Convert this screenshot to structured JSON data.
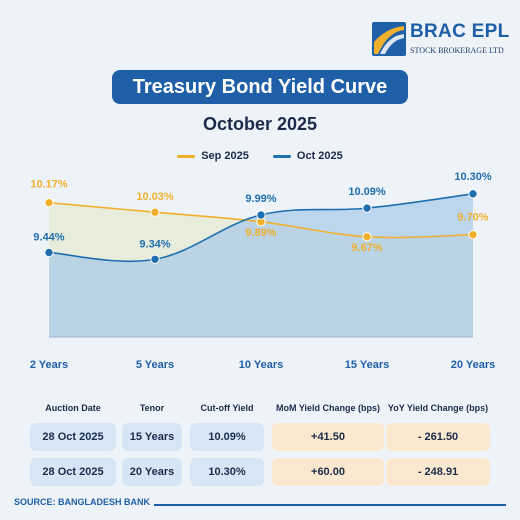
{
  "logo": {
    "name": "BRAC EPL",
    "sub": "STOCK BROKERAGE LTD"
  },
  "header": {
    "title": "Treasury Bond Yield Curve",
    "subtitle": "October 2025"
  },
  "colors": {
    "sep": "#f0b02e",
    "oct": "#1f6fae",
    "title_bg": "#1f5fa7",
    "cream": "#fbe9cf",
    "light_blue": "#d6e6f6"
  },
  "chart_data": {
    "type": "line",
    "categories": [
      "2 Years",
      "5 Years",
      "10 Years",
      "15 Years",
      "20 Years"
    ],
    "series": [
      {
        "name": "Sep 2025",
        "values": [
          10.17,
          10.03,
          9.89,
          9.67,
          9.7
        ],
        "labels": [
          "10.17%",
          "10.03%",
          "9.89%",
          "9.67%",
          "9.70%"
        ]
      },
      {
        "name": "Oct 2025",
        "values": [
          9.44,
          9.34,
          9.99,
          10.09,
          10.3
        ],
        "labels": [
          "9.44%",
          "9.34%",
          "9.99%",
          "10.09%",
          "10.30%"
        ]
      }
    ],
    "ylim": [
      8.2,
      10.4
    ],
    "grid": false,
    "legend": "top-center"
  },
  "table": {
    "headers": [
      "Auction Date",
      "Tenor",
      "Cut-off Yield",
      "MoM Yield Change (bps)",
      "YoY Yield Change (bps)"
    ],
    "rows": [
      [
        "28 Oct 2025",
        "15 Years",
        "10.09%",
        "+41.50",
        "- 261.50"
      ],
      [
        "28 Oct 2025",
        "20 Years",
        "10.30%",
        "+60.00",
        "- 248.91"
      ]
    ]
  },
  "footer": {
    "source": "SOURCE: BANGLADESH BANK"
  }
}
